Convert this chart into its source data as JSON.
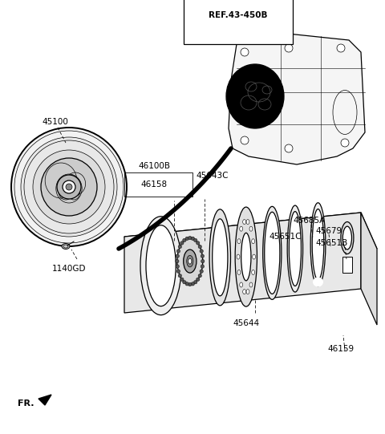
{
  "background_color": "#ffffff",
  "line_color": "#000000",
  "labels": {
    "ref": "REF.43-450B",
    "p45100": "45100",
    "p1140GD": "1140GD",
    "p46100B": "46100B",
    "p46158": "46158",
    "p45643C": "45643C",
    "p45644": "45644",
    "p45651C": "45651C",
    "p45685A": "45685A",
    "p45679": "45679",
    "p45651B": "45651B",
    "p46159": "46159",
    "fr": "FR."
  },
  "font_size": 7.5,
  "lw_thin": 0.5,
  "lw_std": 0.9,
  "lw_thick": 1.4
}
